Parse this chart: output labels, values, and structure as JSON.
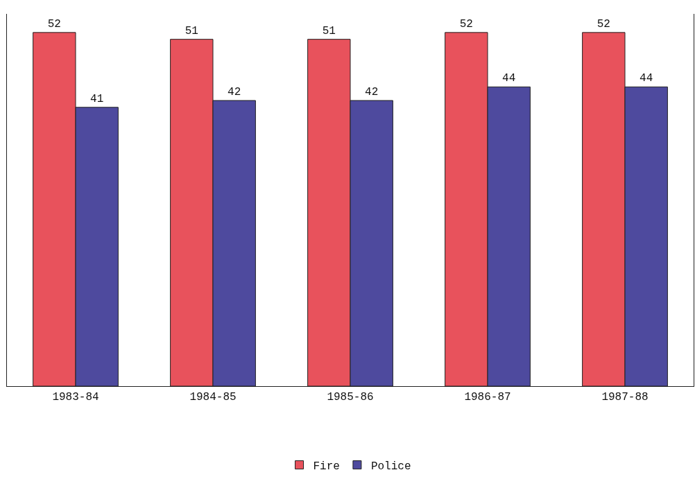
{
  "chart_data": {
    "type": "bar",
    "categories": [
      "1983-84",
      "1984-85",
      "1985-86",
      "1986-87",
      "1987-88"
    ],
    "series": [
      {
        "name": "Fire",
        "color": "#e8525c",
        "values": [
          52,
          51,
          51,
          52,
          52
        ]
      },
      {
        "name": "Police",
        "color": "#4e4a9e",
        "values": [
          41,
          42,
          42,
          44,
          44
        ]
      }
    ],
    "data_labels": true,
    "legend": "bottom",
    "grid": false
  }
}
